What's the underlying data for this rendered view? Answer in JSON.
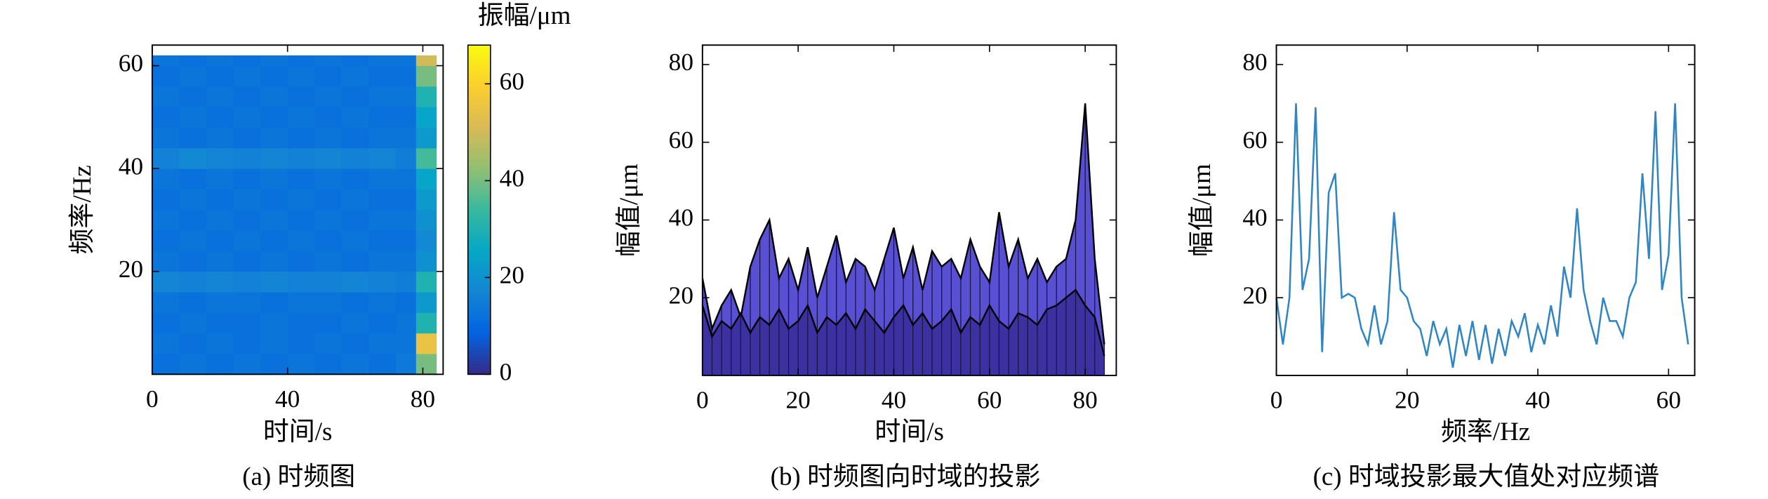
{
  "chart_data": [
    {
      "type": "heatmap",
      "caption": "(a) 时频图",
      "xlabel": "时间/s",
      "ylabel": "频率/Hz",
      "colorbar_label": "振幅/μm",
      "xlim": [
        0,
        86
      ],
      "ylim": [
        0,
        64
      ],
      "xticks": [
        0,
        40,
        80
      ],
      "yticks": [
        20,
        40,
        60
      ],
      "clim": [
        0,
        68
      ],
      "cticks": [
        0,
        20,
        40,
        60
      ],
      "colormap": [
        "#352a87",
        "#0363e1",
        "#1485d4",
        "#06a7c6",
        "#38b99e",
        "#92bf73",
        "#d9ba56",
        "#fcce2e",
        "#f9fb0e"
      ],
      "x_edges": [
        0,
        8,
        16,
        24,
        32,
        40,
        48,
        56,
        64,
        72,
        78,
        84
      ],
      "y_edges": [
        0,
        4,
        8,
        12,
        16,
        20,
        24,
        28,
        32,
        36,
        40,
        44,
        48,
        52,
        56,
        60,
        62
      ],
      "z": [
        [
          12,
          13,
          12,
          13,
          12,
          13,
          12,
          13,
          12,
          14,
          40
        ],
        [
          13,
          12,
          13,
          12,
          13,
          12,
          13,
          12,
          13,
          13,
          55
        ],
        [
          12,
          13,
          12,
          12,
          13,
          12,
          12,
          13,
          12,
          13,
          30
        ],
        [
          13,
          12,
          13,
          13,
          12,
          13,
          13,
          12,
          13,
          12,
          22
        ],
        [
          17,
          16,
          17,
          16,
          17,
          16,
          16,
          17,
          16,
          15,
          30
        ],
        [
          13,
          12,
          13,
          12,
          13,
          12,
          13,
          12,
          13,
          13,
          20
        ],
        [
          12,
          13,
          12,
          13,
          12,
          13,
          12,
          13,
          12,
          12,
          18
        ],
        [
          13,
          12,
          13,
          12,
          13,
          12,
          13,
          12,
          13,
          13,
          20
        ],
        [
          12,
          13,
          12,
          13,
          12,
          13,
          12,
          13,
          12,
          12,
          22
        ],
        [
          13,
          12,
          13,
          12,
          13,
          12,
          13,
          12,
          13,
          13,
          25
        ],
        [
          16,
          18,
          17,
          16,
          17,
          16,
          17,
          16,
          17,
          15,
          35
        ],
        [
          13,
          12,
          13,
          12,
          13,
          12,
          13,
          12,
          13,
          13,
          22
        ],
        [
          12,
          13,
          12,
          13,
          12,
          13,
          12,
          13,
          12,
          12,
          25
        ],
        [
          13,
          12,
          13,
          12,
          13,
          12,
          13,
          12,
          13,
          13,
          30
        ],
        [
          12,
          13,
          12,
          13,
          12,
          13,
          12,
          13,
          12,
          12,
          40
        ],
        [
          13,
          12,
          13,
          12,
          13,
          12,
          13,
          12,
          13,
          13,
          50
        ]
      ]
    },
    {
      "type": "area",
      "caption": "(b) 时频图向时域的投影",
      "xlabel": "时间/s",
      "ylabel": "幅值/μm",
      "xlim": [
        0,
        86.5
      ],
      "ylim": [
        0,
        85
      ],
      "xticks": [
        0,
        20,
        40,
        60,
        80
      ],
      "yticks": [
        20,
        40,
        60,
        80
      ],
      "x": [
        0,
        2,
        4,
        6,
        8,
        10,
        12,
        14,
        16,
        18,
        20,
        22,
        24,
        26,
        28,
        30,
        32,
        34,
        36,
        38,
        40,
        42,
        44,
        46,
        48,
        50,
        52,
        54,
        56,
        58,
        60,
        62,
        64,
        66,
        68,
        70,
        72,
        74,
        76,
        78,
        80,
        82,
        84
      ],
      "series": [
        {
          "color": "#5046d0",
          "values": [
            25,
            12,
            18,
            22,
            15,
            28,
            35,
            40,
            25,
            30,
            22,
            33,
            20,
            28,
            36,
            24,
            30,
            28,
            22,
            30,
            38,
            25,
            33,
            22,
            32,
            28,
            30,
            25,
            35,
            28,
            24,
            42,
            28,
            35,
            25,
            30,
            24,
            28,
            30,
            40,
            70,
            30,
            8
          ]
        },
        {
          "color": "#3a2f9e",
          "values": [
            18,
            10,
            14,
            12,
            16,
            11,
            15,
            13,
            17,
            12,
            14,
            18,
            11,
            15,
            13,
            16,
            12,
            17,
            14,
            11,
            15,
            18,
            13,
            16,
            12,
            14,
            17,
            11,
            15,
            13,
            18,
            14,
            12,
            16,
            15,
            13,
            17,
            18,
            20,
            22,
            18,
            15,
            5
          ]
        }
      ]
    },
    {
      "type": "line",
      "caption": "(c) 时域投影最大值处对应频谱",
      "xlabel": "频率/Hz",
      "ylabel": "幅值/μm",
      "xlim": [
        0,
        64
      ],
      "ylim": [
        0,
        85
      ],
      "xticks": [
        0,
        20,
        40,
        60
      ],
      "yticks": [
        20,
        40,
        60,
        80
      ],
      "x": [
        0,
        1,
        2,
        3,
        4,
        5,
        6,
        7,
        8,
        9,
        10,
        11,
        12,
        13,
        14,
        15,
        16,
        17,
        18,
        19,
        20,
        21,
        22,
        23,
        24,
        25,
        26,
        27,
        28,
        29,
        30,
        31,
        32,
        33,
        34,
        35,
        36,
        37,
        38,
        39,
        40,
        41,
        42,
        43,
        44,
        45,
        46,
        47,
        48,
        49,
        50,
        51,
        52,
        53,
        54,
        55,
        56,
        57,
        58,
        59,
        60,
        61,
        62,
        63
      ],
      "series": [
        {
          "color": "#2f86c3",
          "values": [
            20,
            8,
            20,
            70,
            22,
            30,
            69,
            6,
            47,
            52,
            20,
            21,
            20,
            12,
            8,
            18,
            8,
            14,
            42,
            22,
            20,
            14,
            12,
            5,
            14,
            8,
            12,
            2,
            13,
            5,
            14,
            4,
            13,
            3,
            12,
            5,
            14,
            10,
            16,
            6,
            13,
            8,
            18,
            10,
            28,
            20,
            43,
            22,
            14,
            8,
            20,
            14,
            14,
            10,
            20,
            24,
            52,
            30,
            68,
            22,
            31,
            70,
            20,
            8
          ]
        }
      ]
    }
  ]
}
